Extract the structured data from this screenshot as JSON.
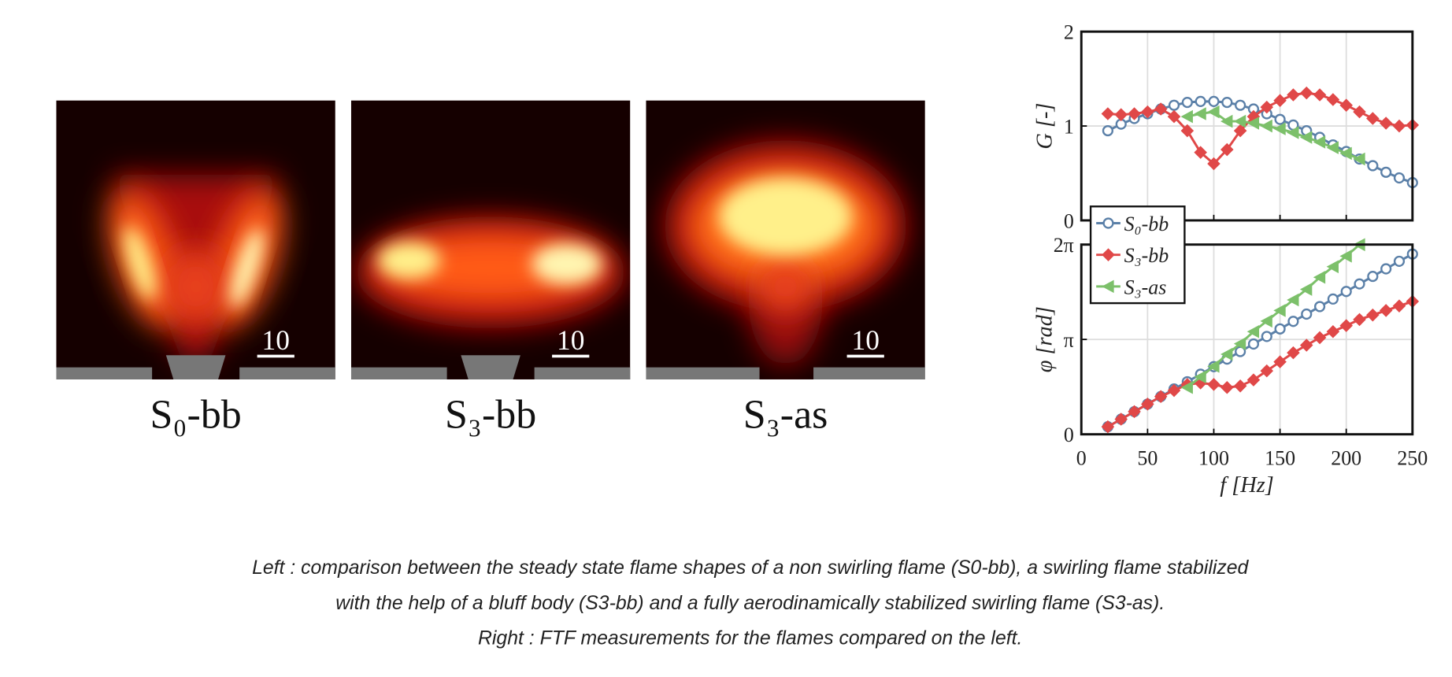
{
  "figure": {
    "panels": [
      {
        "label": "S₀-bb",
        "scale_label": "10"
      },
      {
        "label": "S₃-bb",
        "scale_label": "10"
      },
      {
        "label": "S₃-as",
        "scale_label": "10"
      }
    ]
  },
  "chart_data": [
    {
      "type": "line",
      "ylabel": "G [-]",
      "x": [
        20,
        30,
        40,
        50,
        60,
        70,
        80,
        90,
        100,
        110,
        120,
        130,
        140,
        150,
        160,
        170,
        180,
        190,
        200,
        210,
        220,
        230,
        240,
        250
      ],
      "xlim": [
        0,
        250
      ],
      "xticks": [
        0,
        50,
        100,
        150,
        200,
        250
      ],
      "xtick_labels": false,
      "ylim": [
        0,
        2
      ],
      "yticks": [
        0,
        1,
        2
      ],
      "grid": true,
      "series": [
        {
          "color": "#5b80a8",
          "marker": "circle",
          "values": [
            0.95,
            1.02,
            1.08,
            1.13,
            1.18,
            1.22,
            1.25,
            1.26,
            1.26,
            1.25,
            1.22,
            1.18,
            1.13,
            1.07,
            1.01,
            0.95,
            0.88,
            0.8,
            0.73,
            0.65,
            0.58,
            0.51,
            0.45,
            0.4
          ]
        },
        {
          "color": "#e04848",
          "marker": "diamond",
          "values": [
            1.13,
            1.12,
            1.13,
            1.15,
            1.18,
            1.1,
            0.95,
            0.72,
            0.6,
            0.75,
            0.95,
            1.1,
            1.2,
            1.27,
            1.33,
            1.35,
            1.33,
            1.28,
            1.22,
            1.15,
            1.08,
            1.03,
            1.0,
            1.01
          ]
        },
        {
          "color": "#7cc06a",
          "marker": "triangle-left",
          "values": [
            null,
            null,
            null,
            null,
            null,
            null,
            1.1,
            1.13,
            1.15,
            1.05,
            1.05,
            1.03,
            1.0,
            0.97,
            0.93,
            0.88,
            0.83,
            0.77,
            0.71,
            0.65,
            null,
            null,
            null,
            null
          ]
        }
      ]
    },
    {
      "type": "line",
      "ylabel": "φ [rad]",
      "xlabel": "f [Hz]",
      "x": [
        20,
        30,
        40,
        50,
        60,
        70,
        80,
        90,
        100,
        110,
        120,
        130,
        140,
        150,
        160,
        170,
        180,
        190,
        200,
        210,
        220,
        230,
        240,
        250
      ],
      "xlim": [
        0,
        250
      ],
      "xticks": [
        0,
        50,
        100,
        150,
        200,
        250
      ],
      "ylim": [
        0,
        6.28319
      ],
      "yticks": [
        0,
        {
          "value": 3.14159,
          "label": "π"
        },
        {
          "value": 6.28319,
          "label": "2π"
        }
      ],
      "grid": true,
      "legend": "top-left",
      "series": [
        {
          "name": "S₀-bb",
          "color": "#5b80a8",
          "marker": "circle",
          "values": [
            0.25,
            0.5,
            0.75,
            1.0,
            1.25,
            1.5,
            1.74,
            1.99,
            2.24,
            2.49,
            2.74,
            2.99,
            3.24,
            3.49,
            3.74,
            3.98,
            4.23,
            4.48,
            4.73,
            4.98,
            5.23,
            5.48,
            5.73,
            5.97
          ]
        },
        {
          "name": "S₃-bb",
          "color": "#e04848",
          "marker": "diamond",
          "values": [
            0.25,
            0.5,
            0.75,
            1.0,
            1.25,
            1.45,
            1.65,
            1.7,
            1.65,
            1.55,
            1.6,
            1.8,
            2.1,
            2.4,
            2.7,
            2.95,
            3.2,
            3.4,
            3.6,
            3.8,
            3.95,
            4.1,
            4.25,
            4.4
          ]
        },
        {
          "name": "S₃-as",
          "color": "#7cc06a",
          "marker": "triangle-left",
          "values": [
            null,
            null,
            null,
            null,
            null,
            null,
            1.55,
            1.9,
            2.25,
            2.65,
            3.0,
            3.4,
            3.75,
            4.1,
            4.45,
            4.8,
            5.2,
            5.55,
            5.9,
            6.28,
            null,
            null,
            null,
            null
          ]
        }
      ]
    }
  ],
  "caption": {
    "lines": [
      "Left : comparison between the steady state flame shapes of a non swirling flame (S0-bb), a swirling flame stabilized",
      "with the help of a bluff body (S3-bb) and a fully aerodinamically stabilized swirling flame (S3-as).",
      "Right : FTF measurements for the flames compared on the left."
    ]
  }
}
